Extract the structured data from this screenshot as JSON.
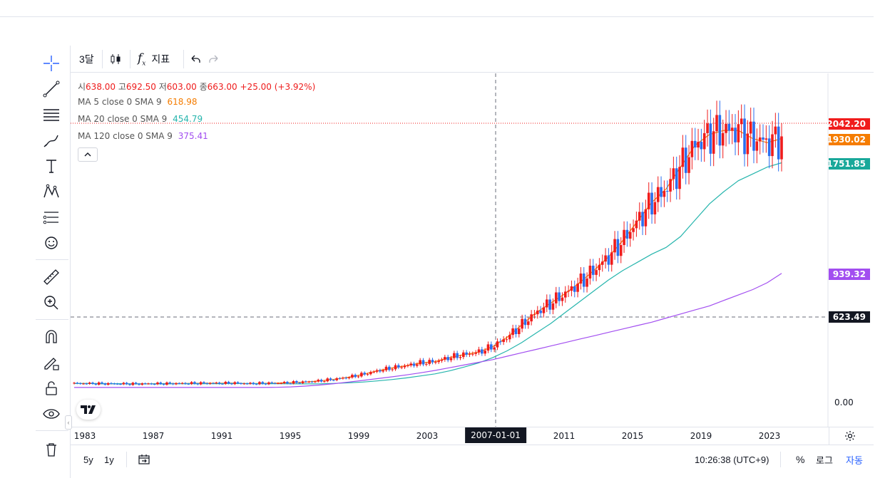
{
  "toolbar": {
    "interval": "3달",
    "indicators_label": "지표"
  },
  "legend": {
    "ohlc": {
      "open_label": "시",
      "open": "638.00",
      "high_label": "고",
      "high": "692.50",
      "low_label": "저",
      "low": "603.00",
      "close_label": "종",
      "close": "663.00",
      "change": "+25.00 (+3.92%)"
    },
    "ma": [
      {
        "label": "MA 5 close 0 SMA 9",
        "value": "618.98",
        "color": "#f57c00"
      },
      {
        "label": "MA 20 close 0 SMA 9",
        "value": "454.79",
        "color": "#26b5ad"
      },
      {
        "label": "MA 120 close 0 SMA 9",
        "value": "375.41",
        "color": "#a24ef0"
      }
    ]
  },
  "price_axis": {
    "badges": [
      {
        "value": "2042.20",
        "color": "#f01c1c"
      },
      {
        "value": "1930.02",
        "color": "#f57c00"
      },
      {
        "value": "1751.85",
        "color": "#19a89a"
      },
      {
        "value": "939.32",
        "color": "#a24ef0"
      },
      {
        "value": "623.49",
        "color": "#131722"
      }
    ],
    "zero_tick": "0.00"
  },
  "time_axis": {
    "ticks": [
      "1983",
      "1987",
      "1991",
      "1995",
      "1999",
      "2003",
      "2011",
      "2015",
      "2019",
      "2023"
    ],
    "crosshair_label": "2007-01-01"
  },
  "bottom_bar": {
    "range_5y": "5y",
    "range_1y": "1y",
    "clock": "10:26:38 (UTC+9)",
    "percent": "%",
    "log": "로그",
    "auto": "자동"
  },
  "colors": {
    "up": "#f01c1c",
    "down": "#2a6ff0",
    "accent": "#2962ff"
  },
  "chart_data": {
    "type": "candlestick",
    "xlabel": "",
    "ylabel": "",
    "series": [
      {
        "name": "MA 5",
        "values": [
          129,
          129,
          128,
          127,
          126,
          127,
          128,
          129,
          130,
          131,
          131,
          132,
          128,
          130,
          132,
          135,
          140,
          148,
          160,
          175,
          196,
          222,
          243,
          260,
          280,
          290,
          320,
          341,
          360,
          400,
          470,
          560,
          650,
          720,
          790,
          870,
          960,
          1060,
          1180,
          1320,
          1460,
          1560,
          1720,
          1880,
          1960,
          1990,
          1990,
          1930,
          1900,
          1930
        ]
      },
      {
        "name": "MA 20",
        "values": [
          129,
          129,
          128,
          128,
          127,
          126,
          126,
          127,
          128,
          128,
          128,
          129,
          129,
          128,
          128,
          127,
          126,
          127,
          130,
          134,
          140,
          148,
          158,
          170,
          185,
          200,
          222,
          250,
          280,
          320,
          370,
          430,
          500,
          570,
          650,
          730,
          810,
          890,
          960,
          1020,
          1080,
          1130,
          1210,
          1330,
          1450,
          1540,
          1620,
          1670,
          1720,
          1752
        ]
      },
      {
        "name": "MA 120",
        "values": [
          100,
          100,
          100,
          100,
          100,
          100,
          100,
          100,
          100,
          100,
          100,
          100,
          100,
          100,
          101,
          104,
          110,
          118,
          128,
          140,
          152,
          165,
          178,
          192,
          208,
          225,
          245,
          265,
          285,
          305,
          330,
          355,
          380,
          405,
          430,
          455,
          480,
          505,
          530,
          555,
          580,
          610,
          640,
          670,
          700,
          740,
          780,
          820,
          870,
          939
        ]
      }
    ],
    "candles_sample_note": "",
    "last": {
      "open": 638.0,
      "high": 692.5,
      "low": 603.0,
      "close": 663.0
    }
  }
}
